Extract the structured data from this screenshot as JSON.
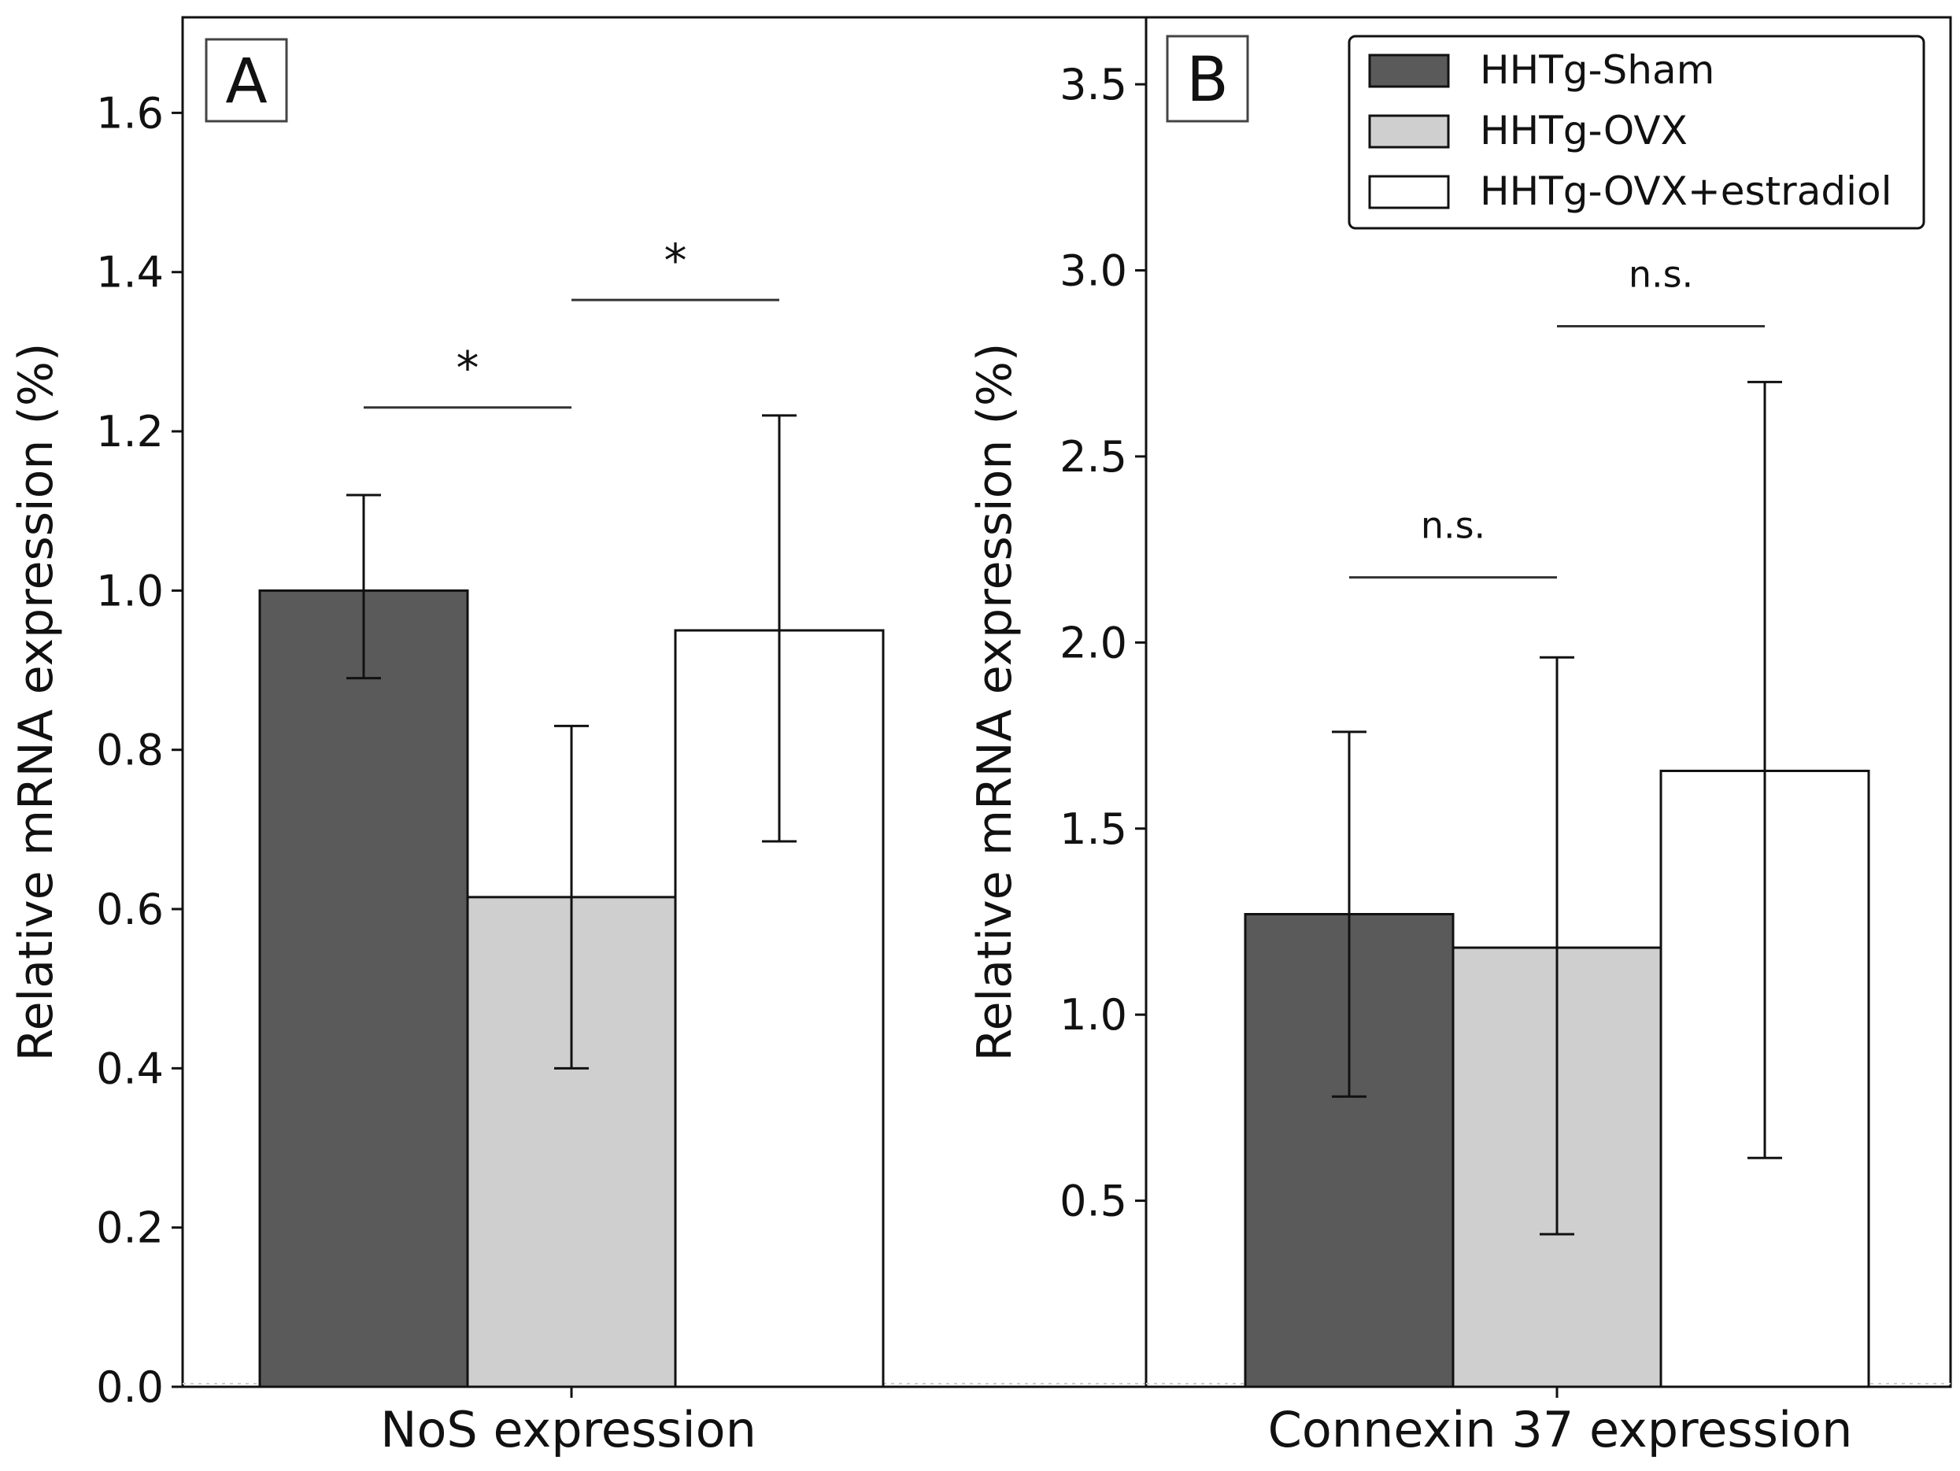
{
  "chart_data": [
    {
      "type": "bar",
      "panel": "A",
      "categories": [
        "NoS expression"
      ],
      "ylabel": "Relative mRNA expression (%)",
      "ylim": [
        0.0,
        1.72
      ],
      "yticks": [
        0.0,
        0.2,
        0.4,
        0.6,
        0.8,
        1.0,
        1.2,
        1.4,
        1.6
      ],
      "ytick_labels": [
        "0.0",
        "0.2",
        "0.4",
        "0.6",
        "0.8",
        "1.0",
        "1.2",
        "1.4",
        "1.6"
      ],
      "series": [
        {
          "name": "HHTg-Sham",
          "values": [
            1.0
          ],
          "error_low": [
            0.89
          ],
          "error_high": [
            1.12
          ]
        },
        {
          "name": "HHTg-OVX",
          "values": [
            0.615
          ],
          "error_low": [
            0.4
          ],
          "error_high": [
            0.83
          ]
        },
        {
          "name": "HHTg-OVX+estradiol",
          "values": [
            0.95
          ],
          "error_low": [
            0.685
          ],
          "error_high": [
            1.22
          ]
        }
      ],
      "annotations": [
        {
          "text": "*",
          "from": 0,
          "to": 1,
          "y": 1.23
        },
        {
          "text": "*",
          "from": 1,
          "to": 2,
          "y": 1.365
        }
      ]
    },
    {
      "type": "bar",
      "panel": "B",
      "categories": [
        "Connexin 37 expression"
      ],
      "ylabel": "Relative mRNA expression (%)",
      "ylim": [
        0.0,
        3.68
      ],
      "yticks": [
        0.5,
        1.0,
        1.5,
        2.0,
        2.5,
        3.0,
        3.5
      ],
      "ytick_labels": [
        "0.5",
        "1.0",
        "1.5",
        "2.0",
        "2.5",
        "3.0",
        "3.5"
      ],
      "series": [
        {
          "name": "HHTg-Sham",
          "values": [
            1.27
          ],
          "error_low": [
            0.78
          ],
          "error_high": [
            1.76
          ]
        },
        {
          "name": "HHTg-OVX",
          "values": [
            1.18
          ],
          "error_low": [
            0.41
          ],
          "error_high": [
            1.96
          ]
        },
        {
          "name": "HHTg-OVX+estradiol",
          "values": [
            1.655
          ],
          "error_low": [
            0.615
          ],
          "error_high": [
            2.7
          ]
        }
      ],
      "annotations": [
        {
          "text": "n.s.",
          "from": 0,
          "to": 1,
          "y": 2.175
        },
        {
          "text": "n.s.",
          "from": 1,
          "to": 2,
          "y": 2.85
        }
      ]
    }
  ],
  "legend": {
    "entries": [
      "HHTg-Sham",
      "HHTg-OVX",
      "HHTg-OVX+estradiol"
    ],
    "location": "top-right"
  },
  "colors": {
    "HHTg-Sham": "#5a5a5a",
    "HHTg-OVX": "#cfcfcf",
    "HHTg-OVX+estradiol": "#ffffff",
    "edge": "#111111",
    "panel_letter_edge": "#444444"
  }
}
